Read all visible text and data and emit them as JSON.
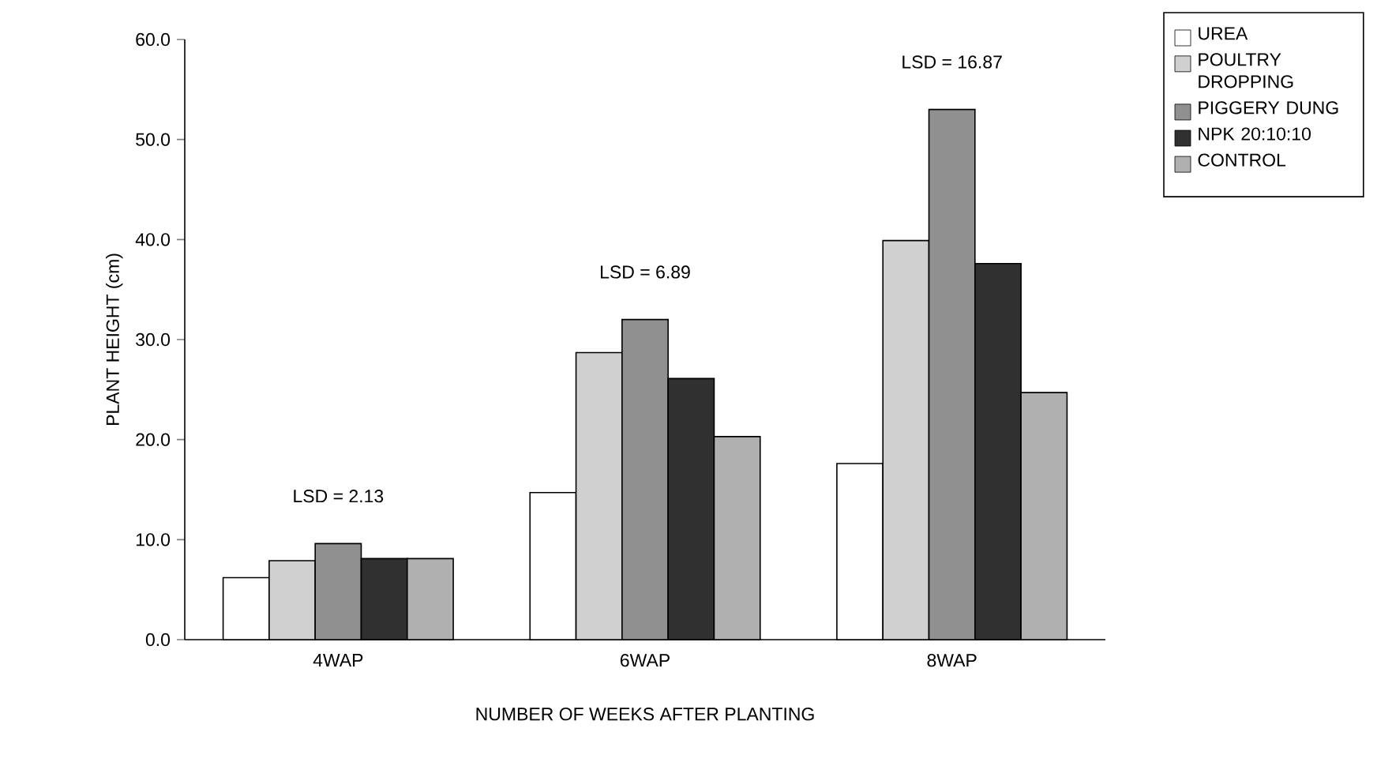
{
  "chart_data": {
    "type": "bar",
    "xlabel": "NUMBER OF WEEKS AFTER PLANTING",
    "ylabel": "PLANT HEIGHT (cm)",
    "categories": [
      "4WAP",
      "6WAP",
      "8WAP"
    ],
    "series": [
      {
        "name": "UREA",
        "color": "#ffffff",
        "values": [
          6.2,
          14.7,
          17.6
        ]
      },
      {
        "name": "POULTRY DROPPING",
        "color": "#d0d0d0",
        "values": [
          7.9,
          28.7,
          39.9
        ]
      },
      {
        "name": "PIGGERY DUNG",
        "color": "#909090",
        "values": [
          9.6,
          32.0,
          53.0
        ]
      },
      {
        "name": "NPK 20:10:10",
        "color": "#303030",
        "values": [
          8.1,
          26.1,
          37.6
        ]
      },
      {
        "name": "CONTROL",
        "color": "#b0b0b0",
        "values": [
          8.1,
          20.3,
          24.7
        ]
      }
    ],
    "ylim": [
      0,
      60
    ],
    "yticks": [
      {
        "value": 0,
        "label": "0.0"
      },
      {
        "value": 10,
        "label": "10.0"
      },
      {
        "value": 20,
        "label": "20.0"
      },
      {
        "value": 30,
        "label": "30.0"
      },
      {
        "value": 40,
        "label": "40.0"
      },
      {
        "value": 50,
        "label": "50.0"
      },
      {
        "value": 60,
        "label": "60.0"
      }
    ],
    "annotations": [
      "LSD = 2.13",
      "LSD = 6.89",
      "LSD = 16.87"
    ],
    "grid": false,
    "legend": "right"
  }
}
